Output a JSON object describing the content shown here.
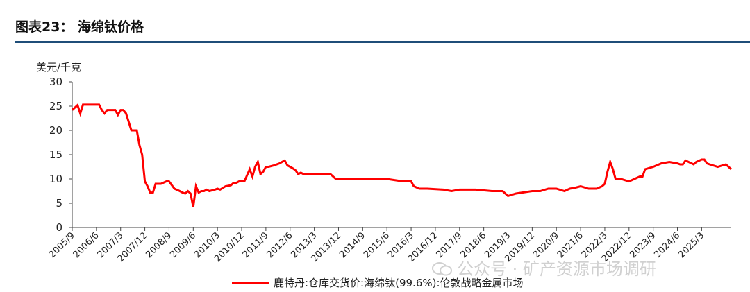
{
  "header": {
    "title": "图表23：  海绵钛价格"
  },
  "watermark": {
    "text": "公众号 · 矿产资源市场调研"
  },
  "colors": {
    "series": "#ff0000",
    "rule": "#1f4e79",
    "axis": "#444444"
  },
  "chart_data": {
    "type": "line",
    "ylabel": "美元/千克",
    "ylim": [
      0,
      30
    ],
    "yticks": [
      0,
      5,
      10,
      15,
      20,
      25,
      30
    ],
    "xticks": [
      "2005/9",
      "2006/6",
      "2007/3",
      "2007/12",
      "2008/9",
      "2009/6",
      "2010/3",
      "2010/12",
      "2011/9",
      "2012/6",
      "2013/3",
      "2013/12",
      "2014/9",
      "2015/6",
      "2016/3",
      "2016/12",
      "2017/9",
      "2018/6",
      "2019/3",
      "2019/12",
      "2020/9",
      "2021/6",
      "2022/3",
      "2022/12",
      "2023/9",
      "2024/6",
      "2025/3"
    ],
    "xlim": [
      "2005/9",
      "2026/2"
    ],
    "grid": false,
    "legend": "bottom",
    "series": [
      {
        "name": "鹿特丹:仓库交货价:海绵钛(99.6%):伦敦战略金属市场",
        "x": [
          "2005/9",
          "2005/11",
          "2005/12",
          "2006/1",
          "2006/2",
          "2006/3",
          "2006/4",
          "2006/7",
          "2006/8",
          "2006/9",
          "2006/10",
          "2006/11",
          "2007/1",
          "2007/2",
          "2007/3",
          "2007/4",
          "2007/5",
          "2007/7",
          "2007/9",
          "2007/10",
          "2007/11",
          "2007/12",
          "2008/1",
          "2008/2",
          "2008/3",
          "2008/4",
          "2008/5",
          "2008/6",
          "2008/8",
          "2008/9",
          "2008/11",
          "2009/1",
          "2009/2",
          "2009/3",
          "2009/4",
          "2009/5",
          "2009/6",
          "2009/7",
          "2009/8",
          "2009/9",
          "2009/10",
          "2009/11",
          "2009/12",
          "2010/2",
          "2010/3",
          "2010/4",
          "2010/6",
          "2010/8",
          "2010/9",
          "2010/10",
          "2010/11",
          "2011/1",
          "2011/3",
          "2011/4",
          "2011/5",
          "2011/6",
          "2011/7",
          "2011/8",
          "2011/9",
          "2011/10",
          "2011/12",
          "2012/2",
          "2012/4",
          "2012/5",
          "2012/6",
          "2012/7",
          "2012/8",
          "2012/9",
          "2012/10",
          "2012/11",
          "2013/1",
          "2013/3",
          "2013/6",
          "2013/9",
          "2013/11",
          "2013/12",
          "2014/6",
          "2014/12",
          "2015/6",
          "2015/12",
          "2016/1",
          "2016/3",
          "2016/4",
          "2016/6",
          "2016/9",
          "2017/3",
          "2017/6",
          "2017/9",
          "2018/3",
          "2018/9",
          "2019/1",
          "2019/3",
          "2019/6",
          "2019/12",
          "2020/3",
          "2020/6",
          "2020/9",
          "2020/12",
          "2021/2",
          "2021/4",
          "2021/6",
          "2021/9",
          "2021/12",
          "2022/2",
          "2022/3",
          "2022/4",
          "2022/5",
          "2022/6",
          "2022/7",
          "2022/9",
          "2022/12",
          "2023/2",
          "2023/4",
          "2023/5",
          "2023/6",
          "2023/9",
          "2023/12",
          "2024/3",
          "2024/6",
          "2024/7",
          "2024/8",
          "2024/9",
          "2024/12",
          "2025/1",
          "2025/3",
          "2025/4",
          "2025/5",
          "2025/6",
          "2025/9",
          "2025/12",
          "2026/2"
        ],
        "values": [
          24.2,
          25.2,
          23.5,
          25.3,
          25.3,
          25.3,
          25.3,
          25.3,
          24.2,
          23.5,
          24.2,
          24.2,
          24.2,
          23.2,
          24.2,
          24.2,
          23.5,
          20.0,
          20.0,
          17.0,
          15.0,
          9.5,
          8.5,
          7.2,
          7.2,
          9.0,
          9.0,
          9.0,
          9.5,
          9.5,
          8.0,
          7.5,
          7.2,
          7.0,
          7.5,
          7.0,
          4.2,
          8.5,
          7.2,
          7.5,
          7.5,
          7.8,
          7.5,
          7.8,
          8.0,
          7.8,
          8.5,
          8.7,
          9.2,
          9.2,
          9.5,
          9.5,
          12.0,
          10.5,
          12.5,
          13.5,
          11.0,
          11.5,
          12.5,
          12.5,
          12.8,
          13.2,
          13.8,
          12.8,
          12.5,
          12.2,
          11.8,
          11.0,
          11.3,
          11.0,
          11.0,
          11.0,
          11.0,
          11.0,
          10.0,
          10.0,
          10.0,
          10.0,
          10.0,
          9.5,
          9.5,
          9.5,
          8.5,
          8.0,
          8.0,
          7.8,
          7.5,
          7.8,
          7.8,
          7.5,
          7.5,
          6.5,
          7.0,
          7.5,
          7.5,
          8.0,
          8.0,
          7.5,
          8.0,
          8.2,
          8.5,
          8.0,
          8.0,
          8.5,
          9.0,
          11.5,
          13.5,
          12.0,
          10.0,
          10.0,
          9.5,
          10.0,
          10.5,
          10.5,
          12.0,
          12.5,
          13.2,
          13.5,
          13.2,
          13.0,
          13.0,
          13.8,
          13.0,
          13.5,
          14.0,
          14.0,
          13.2,
          13.0,
          12.5,
          13.0,
          12.0
        ]
      }
    ]
  }
}
